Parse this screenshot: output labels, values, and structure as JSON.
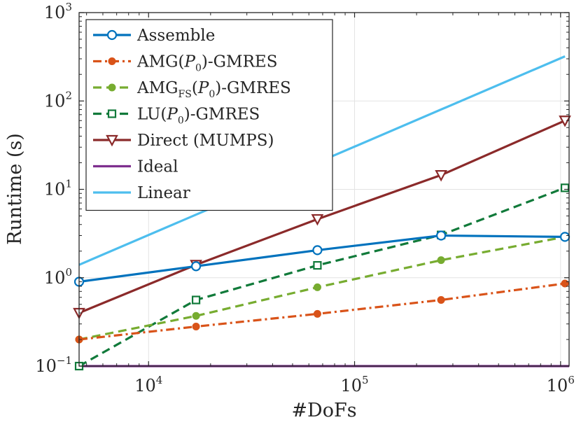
{
  "chart_data": {
    "type": "line",
    "xlabel": "#DoFs",
    "ylabel": "Runtime (s)",
    "xscale": "log",
    "yscale": "log",
    "xlim": [
      4600,
      1100000
    ],
    "ylim": [
      0.1,
      1000
    ],
    "grid": true,
    "legend_position": "top-left",
    "x_ticks": [
      {
        "value": 10000,
        "base": "10",
        "exp": "4"
      },
      {
        "value": 100000,
        "base": "10",
        "exp": "5"
      },
      {
        "value": 1000000,
        "base": "10",
        "exp": "6"
      }
    ],
    "y_ticks": [
      {
        "value": 0.1,
        "base": "10",
        "exp": "−1"
      },
      {
        "value": 1,
        "base": "10",
        "exp": "0"
      },
      {
        "value": 10,
        "base": "10",
        "exp": "1"
      },
      {
        "value": 100,
        "base": "10",
        "exp": "2"
      },
      {
        "value": 1000,
        "base": "10",
        "exp": "3"
      }
    ],
    "series": [
      {
        "key": "assemble",
        "name": "Assemble",
        "name_parts": [
          {
            "t": "Assemble"
          }
        ],
        "color": "#0072bd",
        "dash": "solid",
        "marker": "circle-open",
        "x": [
          4600,
          17000,
          66000,
          263000,
          1050000
        ],
        "y": [
          0.9,
          1.35,
          2.05,
          3.0,
          2.9
        ]
      },
      {
        "key": "amg",
        "name": "AMG(P0)-GMRES",
        "name_parts": [
          {
            "t": "AMG("
          },
          {
            "t": "P",
            "italic": true
          },
          {
            "t": "0",
            "sub": true
          },
          {
            "t": ")-GMRES"
          }
        ],
        "color": "#d95319",
        "dash": "dashdot",
        "marker": "circle-filled",
        "x": [
          4600,
          17000,
          66000,
          263000,
          1050000
        ],
        "y": [
          0.2,
          0.28,
          0.39,
          0.56,
          0.86
        ]
      },
      {
        "key": "amgfs",
        "name": "AMGFS(P0)-GMRES",
        "name_parts": [
          {
            "t": "AMG"
          },
          {
            "t": "FS",
            "sub": true,
            "small": true
          },
          {
            "t": "("
          },
          {
            "t": "P",
            "italic": true
          },
          {
            "t": "0",
            "sub": true
          },
          {
            "t": ")-GMRES"
          }
        ],
        "color": "#77ac30",
        "dash": "dashed",
        "marker": "circle-filled",
        "x": [
          4600,
          17000,
          66000,
          263000,
          1050000
        ],
        "y": [
          0.2,
          0.37,
          0.78,
          1.58,
          2.9
        ]
      },
      {
        "key": "lu",
        "name": "LU(P0)-GMRES",
        "name_parts": [
          {
            "t": "LU("
          },
          {
            "t": "P",
            "italic": true
          },
          {
            "t": "0",
            "sub": true
          },
          {
            "t": ")-GMRES"
          }
        ],
        "color": "#117a3a",
        "dash": "dashed",
        "marker": "square-open",
        "x": [
          4600,
          17000,
          66000,
          263000,
          1050000
        ],
        "y": [
          0.1,
          0.56,
          1.38,
          3.05,
          10.4
        ]
      },
      {
        "key": "direct",
        "name": "Direct (MUMPS)",
        "name_parts": [
          {
            "t": "Direct (MUMPS)"
          }
        ],
        "color": "#8b2a2a",
        "dash": "solid",
        "marker": "triangle-down-open",
        "x": [
          4600,
          17000,
          66000,
          263000,
          1050000
        ],
        "y": [
          0.4,
          1.4,
          4.6,
          14.5,
          60
        ]
      },
      {
        "key": "ideal",
        "name": "Ideal",
        "name_parts": [
          {
            "t": "Ideal"
          }
        ],
        "color": "#7e2f8e",
        "dash": "solid",
        "marker": "none",
        "x": [
          4600,
          1100000
        ],
        "y": [
          0.1,
          0.1
        ]
      },
      {
        "key": "linear",
        "name": "Linear",
        "name_parts": [
          {
            "t": "Linear"
          }
        ],
        "color": "#4dbeee",
        "dash": "solid",
        "marker": "none",
        "x": [
          4600,
          1050000
        ],
        "y": [
          1.4,
          320
        ]
      }
    ]
  }
}
